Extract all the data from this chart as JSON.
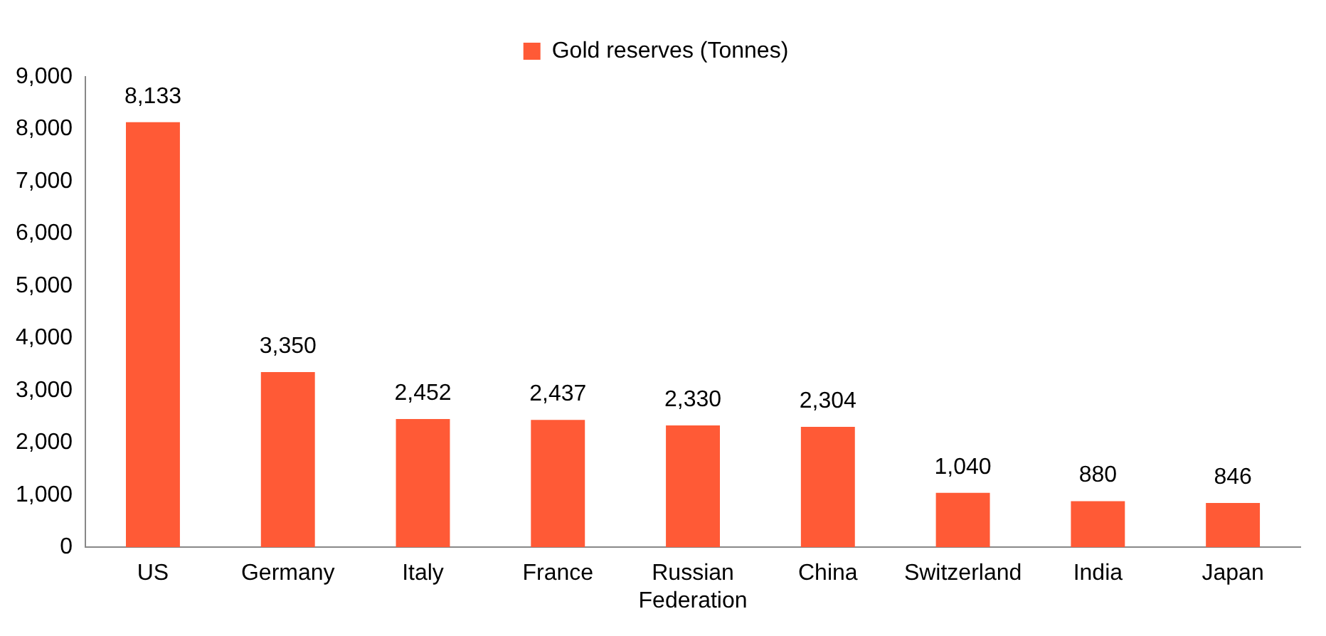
{
  "chart_data": {
    "type": "bar",
    "categories": [
      "US",
      "Germany",
      "Italy",
      "France",
      "Russian Federation",
      "China",
      "Switzerland",
      "India",
      "Japan"
    ],
    "series": [
      {
        "name": "Gold reserves (Tonnes)",
        "color": "#ff5a36",
        "values": [
          8133,
          3350,
          2452,
          2437,
          2330,
          2304,
          1040,
          880,
          846
        ],
        "value_labels": [
          "8,133",
          "3,350",
          "2,452",
          "2,437",
          "2,330",
          "2,304",
          "1,040",
          "880",
          "846"
        ]
      }
    ],
    "ylim": [
      0,
      9000
    ],
    "yticks": [
      {
        "value": 0,
        "label": "0"
      },
      {
        "value": 1000,
        "label": "1,000"
      },
      {
        "value": 2000,
        "label": "2,000"
      },
      {
        "value": 3000,
        "label": "3,000"
      },
      {
        "value": 4000,
        "label": "4,000"
      },
      {
        "value": 5000,
        "label": "5,000"
      },
      {
        "value": 6000,
        "label": "6,000"
      },
      {
        "value": 7000,
        "label": "7,000"
      },
      {
        "value": 8000,
        "label": "8,000"
      },
      {
        "value": 9000,
        "label": "9,000"
      }
    ],
    "grid": false,
    "legend": "top"
  }
}
